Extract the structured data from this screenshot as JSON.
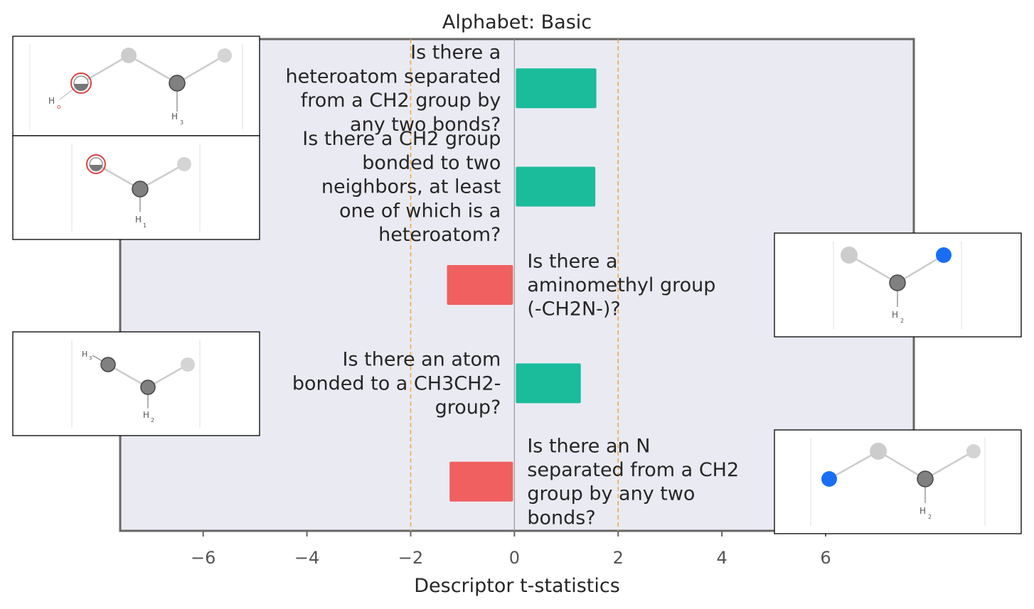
{
  "chart_data": {
    "type": "bar",
    "orientation": "horizontal",
    "title": "Alphabet: Basic",
    "xlabel": "Descriptor t-statistics",
    "ylabel": "",
    "xlim": [
      -7.6,
      7.7
    ],
    "xticks": [
      -6,
      -4,
      -2,
      0,
      2,
      4,
      6
    ],
    "xtick_labels": [
      "−6",
      "−4",
      "−2",
      "0",
      "2",
      "4",
      "6"
    ],
    "threshold_lines": [
      -2,
      2
    ],
    "colors": {
      "positive": "#1abc9c",
      "negative": "#f06060",
      "threshold": "#f5a742",
      "background": "#eaeaf2",
      "frame": "#666666"
    },
    "grid": false,
    "categories": [
      "Is there a heteroatom separated from a CH2 group by any two bonds?",
      "Is there a CH2 group bonded to two neighbors, at least one of which is a heteroatom?",
      "Is there a aminomethyl group (-CH2N-)?",
      "Is there an atom bonded to a CH3CH2- group?",
      "Is there an N separated from a CH2 group by any two bonds?"
    ],
    "values": [
      1.58,
      1.56,
      -1.3,
      1.28,
      -1.25
    ],
    "label_lines": [
      [
        "Is there a",
        "heteroatom separated",
        "from a CH2 group by",
        "any two bonds?"
      ],
      [
        "Is there a CH2 group",
        "bonded to two",
        "neighbors, at least",
        "one of which is a",
        "heteroatom?"
      ],
      [
        "Is there a",
        "aminomethyl group",
        "(-CH2N-)?"
      ],
      [
        "Is there an atom",
        "bonded to a CH3CH2-",
        "group?"
      ],
      [
        "Is there an N",
        "separated from a CH2",
        "group by any two",
        "bonds?"
      ]
    ]
  },
  "molecule_icons": [
    "hydroxyl-ethyl-molecule-icon",
    "hydroxymethyl-molecule-icon",
    "aminomethyl-molecule-icon",
    "ethyl-molecule-icon",
    "n-propyl-molecule-icon"
  ]
}
